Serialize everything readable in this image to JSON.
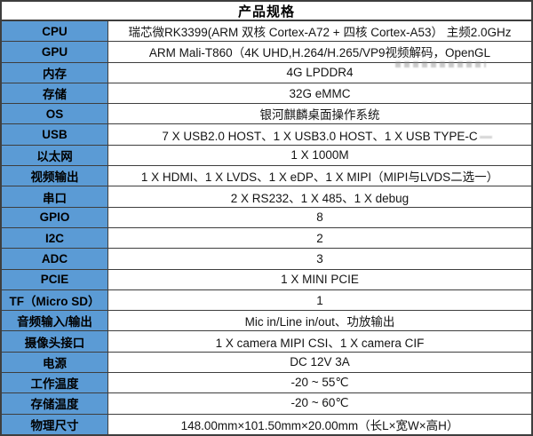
{
  "table": {
    "title": "产品规格",
    "rows": [
      {
        "label": "CPU",
        "value": "瑞芯微RK3399(ARM 双核 Cortex-A72 + 四核 Cortex-A53） 主频2.0GHz"
      },
      {
        "label": "GPU",
        "value": "ARM Mali-T860（4K UHD,H.264/H.265/VP9视频解码，OpenGL"
      },
      {
        "label": "内存",
        "value": "4G LPDDR4"
      },
      {
        "label": "存储",
        "value": "32G eMMC"
      },
      {
        "label": "OS",
        "value": "银河麒麟桌面操作系统"
      },
      {
        "label": "USB",
        "value": "7 X USB2.0 HOST、1 X USB3.0 HOST、1 X USB TYPE-C"
      },
      {
        "label": "以太网",
        "value": "1 X 1000M"
      },
      {
        "label": "视频输出",
        "value": "1 X HDMI、1 X LVDS、1 X eDP、1 X MIPI（MIPI与LVDS二选一）"
      },
      {
        "label": "串口",
        "value": "2 X RS232、1 X 485、1 X debug"
      },
      {
        "label": "GPIO",
        "value": "8"
      },
      {
        "label": "I2C",
        "value": "2"
      },
      {
        "label": "ADC",
        "value": "3"
      },
      {
        "label": "PCIE",
        "value": "1 X MINI PCIE"
      },
      {
        "label": "TF（Micro SD）",
        "value": "1"
      },
      {
        "label": "音频输入/输出",
        "value": "Mic in/Line in/out、功放输出"
      },
      {
        "label": "摄像头接口",
        "value": "1 X camera MIPI CSI、1 X camera CIF"
      },
      {
        "label": "电源",
        "value": "DC 12V 3A"
      },
      {
        "label": "工作温度",
        "value": "-20 ~ 55℃"
      },
      {
        "label": "存储温度",
        "value": "-20 ~ 60℃"
      },
      {
        "label": "物理尺寸",
        "value": "148.00mm×101.50mm×20.00mm（长L×宽W×高H）"
      }
    ]
  },
  "colors": {
    "label_cell_blue": "#5b9bd5",
    "border": "#3e3e3e",
    "background": "#ffffff",
    "text": "#000000"
  }
}
